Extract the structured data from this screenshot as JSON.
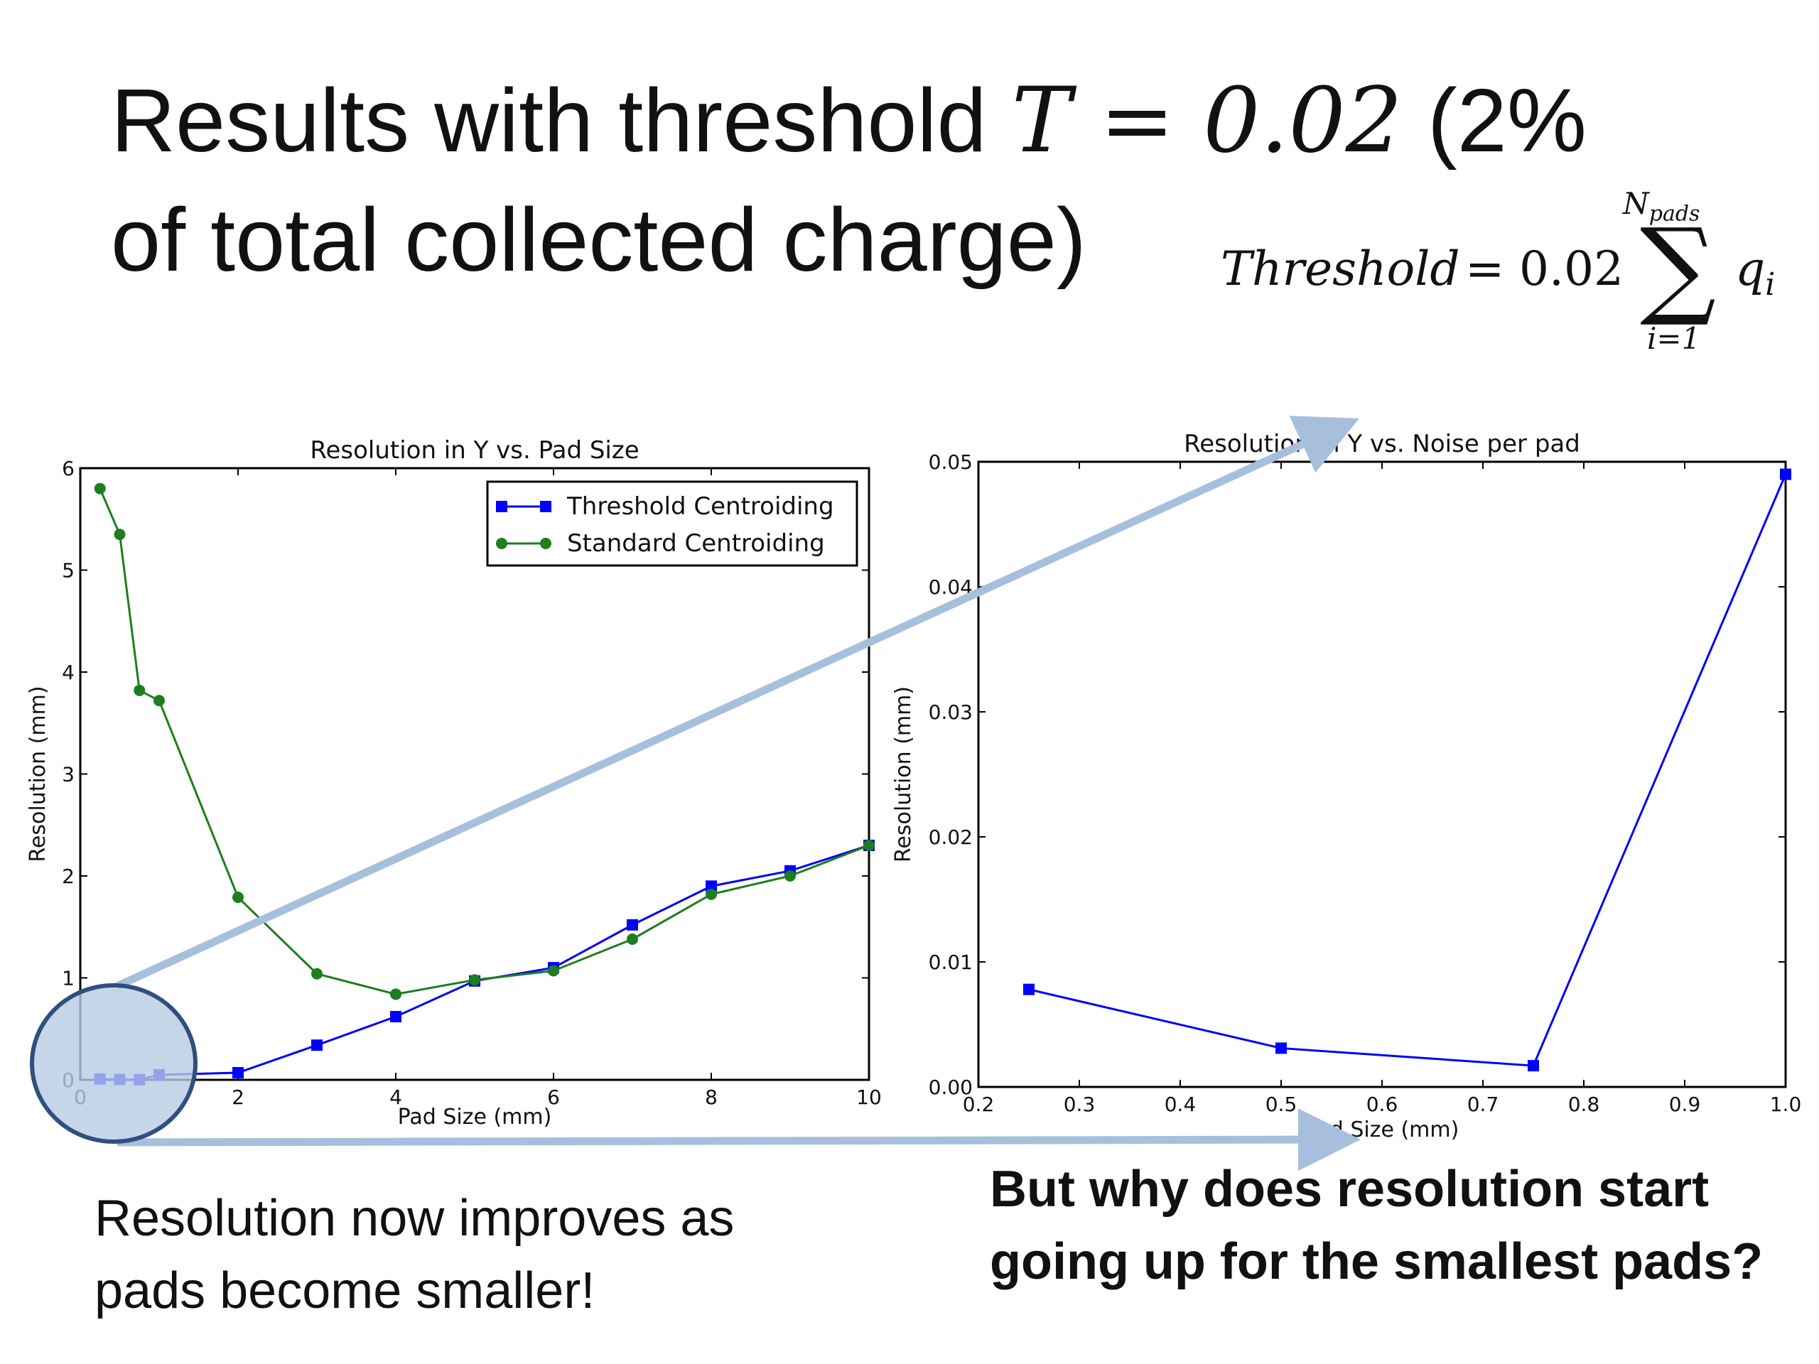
{
  "slide": {
    "title_line1": "Results with threshold ",
    "title_math": "T = 0.02",
    "title_line1_end": " (2%",
    "title_line2": "of total collected charge)",
    "formula": {
      "lhs": "Threshold",
      "eq": "=",
      "coef": "0.02",
      "sum_symbol": "∑",
      "upper_limit": "N_pads",
      "lower_limit": "i=1",
      "term": "q_i"
    },
    "note_left": "Resolution now improves as pads become smaller!",
    "note_right": "But why does resolution start going up for the smallest pads?",
    "colors": {
      "threshold_series": "#0000ff",
      "standard_series": "#1e7d1e",
      "highlight_arrow": "#a7bfdc",
      "highlight_circle": "#b8cce4",
      "circle_stroke": "#2f4f7f"
    }
  },
  "chart_data": [
    {
      "type": "line",
      "title": "Resolution in Y  vs. Pad Size",
      "xlabel": "Pad Size (mm)",
      "ylabel": "Resolution (mm)",
      "xlim": [
        0,
        10
      ],
      "ylim": [
        0,
        6
      ],
      "xticks": [
        0,
        2,
        4,
        6,
        8,
        10
      ],
      "yticks": [
        0,
        1,
        2,
        3,
        4,
        5,
        6
      ],
      "grid": false,
      "legend": "top-right",
      "series": [
        {
          "name": "Threshold Centroiding",
          "marker": "square",
          "color": "#0000ff",
          "x": [
            0.25,
            0.5,
            0.75,
            1,
            2,
            3,
            4,
            5,
            6,
            7,
            8,
            9,
            10
          ],
          "y": [
            0.008,
            0.003,
            0.002,
            0.049,
            0.07,
            0.34,
            0.62,
            0.97,
            1.1,
            1.52,
            1.9,
            2.05,
            2.3
          ]
        },
        {
          "name": "Standard Centroiding",
          "marker": "circle",
          "color": "#1e7d1e",
          "x": [
            0.25,
            0.5,
            0.75,
            1,
            2,
            3,
            4,
            5,
            6,
            7,
            8,
            9,
            10
          ],
          "y": [
            5.8,
            5.35,
            3.82,
            3.72,
            1.79,
            1.04,
            0.84,
            0.98,
            1.07,
            1.38,
            1.82,
            2.0,
            2.3
          ]
        }
      ]
    },
    {
      "type": "line",
      "title": "Resolution in Y vs. Noise per pad",
      "xlabel": "Pad Size (mm)",
      "ylabel": "Resolution (mm)",
      "xlim": [
        0.2,
        1.0
      ],
      "ylim": [
        0,
        0.05
      ],
      "xticks": [
        "0.2",
        "0.3",
        "0.4",
        "0.5",
        "0.6",
        "0.7",
        "0.8",
        "0.9",
        "1.0"
      ],
      "yticks": [
        "0.00",
        "0.01",
        "0.02",
        "0.03",
        "0.04",
        "0.05"
      ],
      "grid": false,
      "series": [
        {
          "marker": "square",
          "color": "#0000ff",
          "x": [
            0.25,
            0.5,
            0.75,
            1.0
          ],
          "y": [
            0.0078,
            0.0031,
            0.0017,
            0.049
          ]
        }
      ]
    }
  ]
}
